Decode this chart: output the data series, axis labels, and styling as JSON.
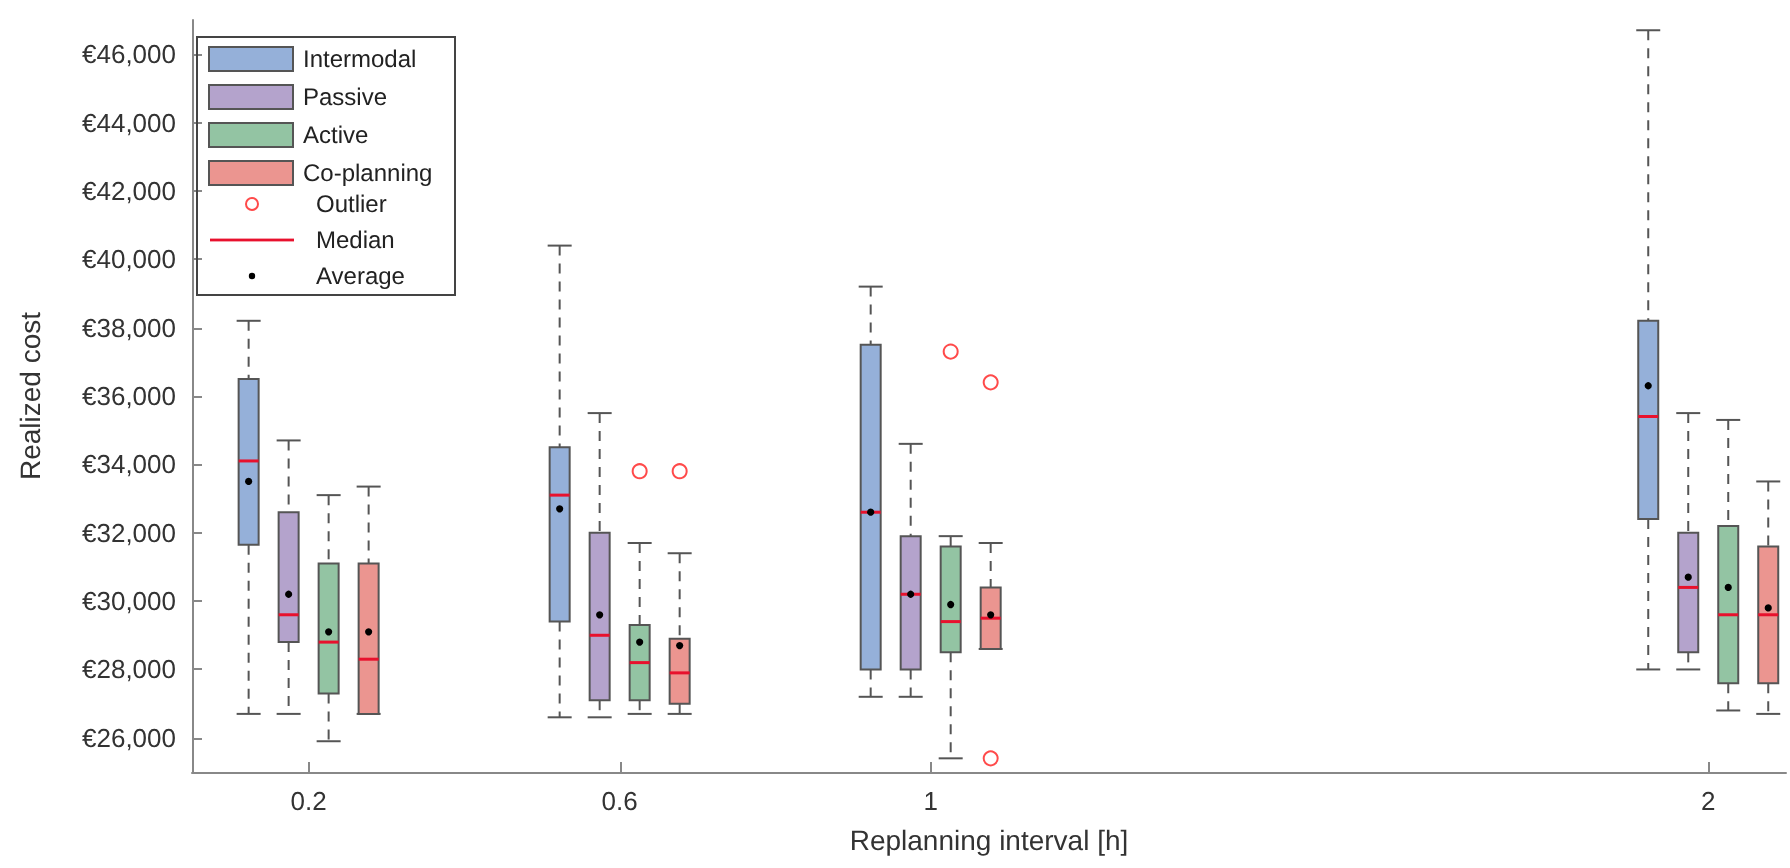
{
  "chart_data": {
    "type": "box",
    "xlabel": "Replanning interval [h]",
    "ylabel": "Realized cost",
    "x": [
      0.2,
      0.6,
      1,
      2
    ],
    "xlim": [
      0.05,
      2.1
    ],
    "xticks": [
      0.2,
      0.6,
      1,
      2
    ],
    "ylim": [
      25000,
      47000
    ],
    "yticks": [
      {
        "value": 26000,
        "label": "€26,000"
      },
      {
        "value": 28000,
        "label": "€28,000"
      },
      {
        "value": 30000,
        "label": "€30,000"
      },
      {
        "value": 32000,
        "label": "€32,000"
      },
      {
        "value": 34000,
        "label": "€34,000"
      },
      {
        "value": 36000,
        "label": "€36,000"
      },
      {
        "value": 38000,
        "label": "€38,000"
      },
      {
        "value": 40000,
        "label": "€40,000"
      },
      {
        "value": 42000,
        "label": "€42,000"
      },
      {
        "value": 44000,
        "label": "€44,000"
      },
      {
        "value": 46000,
        "label": "€46,000"
      }
    ],
    "grid": false,
    "legend": "top left",
    "annotations": [
      "Outlier",
      "Median",
      "Average"
    ],
    "series": [
      {
        "name": "Intermodal",
        "color": "#95b0d9",
        "boxes": [
          {
            "low": 26700,
            "q1": 31650,
            "median": 34100,
            "q3": 36500,
            "high": 38200,
            "mean": 33500
          },
          {
            "low": 26600,
            "q1": 29400,
            "median": 33100,
            "q3": 34500,
            "high": 40400,
            "mean": 32700
          },
          {
            "low": 27200,
            "q1": 28000,
            "median": 32600,
            "q3": 37500,
            "high": 39200,
            "mean": 32600
          },
          {
            "low": 28000,
            "q1": 32400,
            "median": 35400,
            "q3": 38200,
            "high": 46700,
            "mean": 36300
          }
        ]
      },
      {
        "name": "Passive",
        "color": "#b4a3cc",
        "boxes": [
          {
            "low": 26700,
            "q1": 28800,
            "median": 29600,
            "q3": 32600,
            "high": 34700,
            "mean": 30200
          },
          {
            "low": 26600,
            "q1": 27100,
            "median": 29000,
            "q3": 32000,
            "high": 35500,
            "mean": 29600
          },
          {
            "low": 27200,
            "q1": 28000,
            "median": 30200,
            "q3": 31900,
            "high": 34600,
            "mean": 30200
          },
          {
            "low": 28000,
            "q1": 28500,
            "median": 30400,
            "q3": 32000,
            "high": 35500,
            "mean": 30700
          }
        ]
      },
      {
        "name": "Active",
        "color": "#93c4a3",
        "boxes": [
          {
            "low": 25900,
            "q1": 27300,
            "median": 28800,
            "q3": 31100,
            "high": 33100,
            "mean": 29100
          },
          {
            "low": 26700,
            "q1": 27100,
            "median": 28200,
            "q3": 29300,
            "high": 31700,
            "mean": 28800,
            "outliers": [
              33800
            ]
          },
          {
            "low": 25400,
            "q1": 28500,
            "median": 29400,
            "q3": 31600,
            "high": 31900,
            "mean": 29900,
            "outliers": [
              37300
            ]
          },
          {
            "low": 26800,
            "q1": 27600,
            "median": 29600,
            "q3": 32200,
            "high": 35300,
            "mean": 30400
          }
        ]
      },
      {
        "name": "Co-planning",
        "color": "#eb9590",
        "boxes": [
          {
            "low": 26700,
            "q1": 26700,
            "median": 28300,
            "q3": 31100,
            "high": 33350,
            "mean": 29100
          },
          {
            "low": 26700,
            "q1": 27000,
            "median": 27900,
            "q3": 28900,
            "high": 31400,
            "mean": 28700,
            "outliers": [
              33800
            ]
          },
          {
            "low": 28600,
            "q1": 28600,
            "median": 29500,
            "q3": 30400,
            "high": 31700,
            "mean": 29600,
            "outliers": [
              36400,
              25400
            ]
          },
          {
            "low": 26700,
            "q1": 27600,
            "median": 29600,
            "q3": 31600,
            "high": 33500,
            "mean": 29800
          }
        ]
      }
    ]
  }
}
